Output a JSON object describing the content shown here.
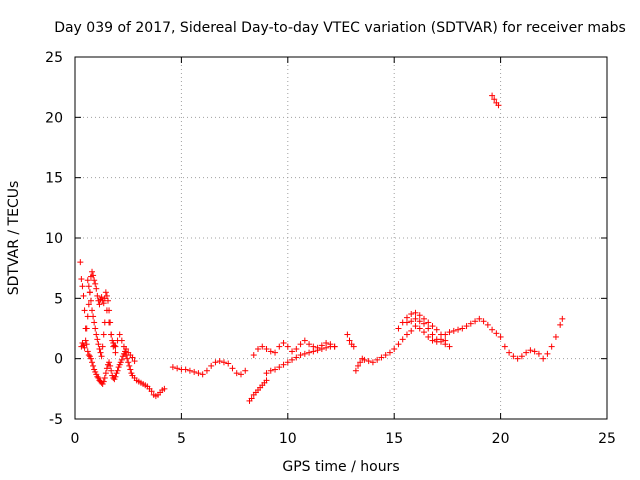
{
  "chart_data": {
    "type": "scatter",
    "title": "Day 039 of 2017, Sidereal Day-to-day VTEC variation (SDTVAR) for receiver mabs",
    "xlabel": "GPS time / hours",
    "ylabel": "SDTVAR / TECUs",
    "xlim": [
      0,
      25
    ],
    "ylim": [
      -5,
      25
    ],
    "xticks": [
      0,
      5,
      10,
      15,
      20,
      25
    ],
    "yticks": [
      -5,
      0,
      5,
      10,
      15,
      20,
      25
    ],
    "grid": true,
    "marker": "+",
    "color": "#ff0000",
    "series": [
      {
        "name": "SDTVAR",
        "x": [
          0.25,
          0.3,
          0.35,
          0.4,
          0.45,
          0.5,
          0.55,
          0.6,
          0.65,
          0.7,
          0.75,
          0.8,
          0.85,
          0.9,
          0.95,
          1.0,
          1.05,
          1.1,
          1.15,
          1.2,
          1.25,
          1.3,
          1.35,
          1.4,
          1.45,
          1.5,
          1.55,
          1.6,
          1.65,
          1.7,
          1.75,
          1.8,
          1.85,
          1.9,
          1.95,
          2.0,
          2.05,
          2.1,
          2.15,
          2.2,
          2.25,
          2.3,
          2.35,
          2.4,
          2.45,
          2.5,
          2.55,
          2.6,
          2.65,
          2.7,
          2.8,
          2.9,
          3.0,
          3.1,
          3.2,
          3.3,
          3.4,
          3.5,
          3.6,
          3.7,
          3.8,
          3.9,
          4.0,
          4.1,
          4.2,
          0.3,
          0.35,
          0.4,
          0.45,
          0.5,
          0.55,
          0.6,
          0.65,
          0.7,
          0.75,
          0.8,
          0.85,
          0.9,
          0.95,
          1.0,
          1.05,
          1.1,
          1.15,
          1.2,
          1.25,
          1.3,
          1.35,
          1.4,
          1.45,
          1.5,
          1.55,
          1.6,
          1.65,
          1.7,
          1.75,
          1.8,
          1.85,
          1.9,
          0.6,
          0.65,
          0.7,
          0.75,
          0.8,
          0.85,
          0.9,
          0.95,
          1.0,
          1.05,
          1.1,
          1.15,
          1.2,
          1.25,
          1.3,
          1.35,
          1.4,
          1.5,
          1.6,
          1.7,
          1.8,
          1.9,
          2.0,
          2.1,
          2.2,
          2.3,
          2.4,
          2.5,
          2.6,
          2.7,
          2.8,
          4.6,
          4.8,
          5.0,
          5.2,
          5.4,
          5.6,
          5.8,
          6.0,
          6.2,
          6.4,
          6.6,
          6.8,
          7.0,
          7.2,
          7.4,
          7.6,
          7.8,
          8.0,
          8.2,
          8.3,
          8.4,
          8.5,
          8.6,
          8.7,
          8.8,
          8.9,
          9.0,
          8.4,
          8.6,
          8.8,
          9.0,
          9.2,
          9.4,
          9.6,
          9.8,
          10.0,
          10.2,
          10.4,
          10.6,
          10.8,
          11.0,
          11.2,
          11.4,
          11.6,
          11.8,
          12.0,
          12.2,
          9.0,
          9.2,
          9.4,
          9.6,
          9.8,
          10.0,
          10.2,
          10.4,
          10.6,
          10.8,
          11.0,
          11.2,
          11.4,
          11.6,
          11.8,
          12.0,
          12.2,
          12.8,
          12.9,
          13.0,
          13.1,
          13.2,
          13.3,
          13.4,
          13.5,
          13.6,
          13.8,
          14.0,
          14.2,
          14.4,
          14.6,
          14.8,
          15.0,
          15.2,
          15.4,
          15.6,
          15.8,
          16.0,
          16.2,
          16.4,
          16.6,
          16.8,
          17.0,
          17.2,
          17.4,
          17.6,
          17.8,
          18.0,
          18.2,
          18.4,
          18.6,
          18.8,
          19.0,
          19.2,
          19.4,
          19.6,
          19.8,
          20.0,
          20.2,
          20.4,
          20.6,
          20.8,
          21.0,
          21.2,
          21.4,
          21.6,
          21.8,
          22.0,
          22.2,
          22.4,
          22.6,
          22.8,
          22.9,
          15.2,
          15.4,
          15.6,
          15.8,
          16.0,
          16.2,
          16.4,
          16.6,
          16.8,
          17.0,
          17.2,
          17.4,
          17.6,
          15.6,
          15.8,
          16.0,
          16.2,
          16.4,
          16.6,
          16.8,
          17.0,
          17.2,
          17.4,
          19.6,
          19.7,
          19.8,
          19.9
        ],
        "y": [
          8.0,
          6.6,
          6.0,
          5.2,
          4.0,
          2.5,
          1.2,
          0.6,
          0.3,
          0.2,
          0.0,
          -0.3,
          -0.6,
          -0.9,
          -1.1,
          -1.3,
          -1.5,
          -1.6,
          -1.8,
          -1.9,
          -2.0,
          -2.1,
          -1.9,
          -1.6,
          -1.2,
          -0.8,
          -0.5,
          -0.3,
          -0.6,
          -1.0,
          -1.4,
          -1.6,
          -1.7,
          -1.5,
          -1.2,
          -1.0,
          -0.7,
          -0.5,
          -0.3,
          -0.1,
          0.2,
          0.4,
          0.6,
          0.3,
          0.0,
          -0.3,
          -0.6,
          -0.9,
          -1.2,
          -1.4,
          -1.6,
          -1.8,
          -1.9,
          -2.0,
          -2.1,
          -2.2,
          -2.3,
          -2.5,
          -2.7,
          -3.0,
          -3.1,
          -3.0,
          -2.8,
          -2.6,
          -2.5,
          1.0,
          1.3,
          1.1,
          0.9,
          1.5,
          2.5,
          3.5,
          4.5,
          5.5,
          6.8,
          7.2,
          6.9,
          6.5,
          6.2,
          5.8,
          5.2,
          4.8,
          4.5,
          4.9,
          5.1,
          4.8,
          4.6,
          5.0,
          5.5,
          5.2,
          4.8,
          4.0,
          3.0,
          2.0,
          1.5,
          1.3,
          1.1,
          1.0,
          6.5,
          6.0,
          5.5,
          4.8,
          4.0,
          3.5,
          3.0,
          2.5,
          2.0,
          1.6,
          1.2,
          0.8,
          0.5,
          0.2,
          1.0,
          2.0,
          3.0,
          4.0,
          3.0,
          2.0,
          1.0,
          0.5,
          1.5,
          2.0,
          1.5,
          1.0,
          0.8,
          0.5,
          0.3,
          0.1,
          -0.2,
          -0.7,
          -0.8,
          -0.9,
          -0.9,
          -1.0,
          -1.1,
          -1.2,
          -1.3,
          -1.0,
          -0.6,
          -0.3,
          -0.2,
          -0.3,
          -0.4,
          -0.8,
          -1.2,
          -1.3,
          -1.0,
          -3.5,
          -3.3,
          -3.0,
          -2.8,
          -2.6,
          -2.4,
          -2.2,
          -2.0,
          -1.8,
          0.3,
          0.8,
          1.0,
          0.8,
          0.6,
          0.5,
          1.0,
          1.3,
          1.0,
          0.6,
          0.8,
          1.2,
          1.5,
          1.2,
          1.0,
          0.9,
          1.1,
          1.3,
          1.2,
          1.0,
          -1.2,
          -1.0,
          -0.9,
          -0.7,
          -0.5,
          -0.3,
          -0.1,
          0.1,
          0.3,
          0.4,
          0.5,
          0.6,
          0.7,
          0.8,
          0.9,
          1.0,
          1.0,
          2.0,
          1.5,
          1.2,
          1.0,
          -1.0,
          -0.6,
          -0.3,
          0.0,
          -0.1,
          -0.2,
          -0.3,
          -0.1,
          0.1,
          0.3,
          0.5,
          0.8,
          1.2,
          1.6,
          2.0,
          2.3,
          2.7,
          2.5,
          2.2,
          1.8,
          1.5,
          1.4,
          1.6,
          2.0,
          2.2,
          2.3,
          2.4,
          2.5,
          2.7,
          2.9,
          3.1,
          3.3,
          3.1,
          2.8,
          2.4,
          2.1,
          1.8,
          1.0,
          0.5,
          0.2,
          0.0,
          0.2,
          0.5,
          0.7,
          0.6,
          0.4,
          0.0,
          0.4,
          1.0,
          1.8,
          2.8,
          3.3,
          2.5,
          3.0,
          3.4,
          3.7,
          3.8,
          3.6,
          3.3,
          3.0,
          2.7,
          2.4,
          2.0,
          1.5,
          1.0,
          3.0,
          3.1,
          3.3,
          3.1,
          2.9,
          2.5,
          2.0,
          1.6,
          1.4,
          1.2,
          21.8,
          21.5,
          21.2,
          21.0
        ]
      }
    ]
  }
}
